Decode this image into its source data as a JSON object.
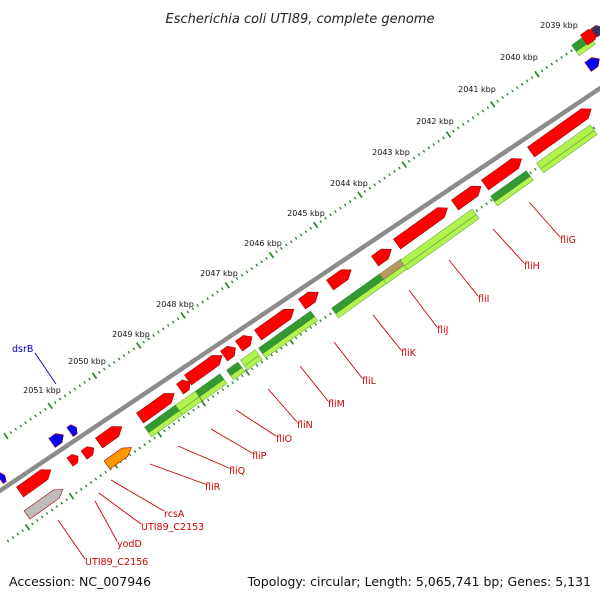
{
  "title": "Escherichia coli UTI89, complete genome",
  "footer": {
    "accession": "Accession: NC_007946",
    "topology": "Topology: circular; Length: 5,065,741 bp; Genes: 5,131"
  },
  "colors": {
    "backbone": "#8c8c8c",
    "cds_forward": "#ff0000",
    "cds_reverse": "#ff0000",
    "rna_gene": "#ff9900",
    "pseudo_gene": "#bdbdbd",
    "regulatory": "#0000ff",
    "cog_dark": "#339933",
    "cog_light": "#b2f24d",
    "ticks": "#2e8b2e",
    "gene_label": "#cc0000",
    "reg_label": "#0000cc"
  },
  "kbp_ticks": [
    "2039 kbp",
    "2040 kbp",
    "2041 kbp",
    "2042 kbp",
    "2043 kbp",
    "2044 kbp",
    "2045 kbp",
    "2046 kbp",
    "2047 kbp",
    "2048 kbp",
    "2049 kbp",
    "2050 kbp",
    "2051 kbp"
  ],
  "gene_labels": [
    {
      "name": "fliG",
      "color": "red"
    },
    {
      "name": "fliH",
      "color": "red"
    },
    {
      "name": "fliI",
      "color": "red"
    },
    {
      "name": "fliJ",
      "color": "red"
    },
    {
      "name": "fliK",
      "color": "red"
    },
    {
      "name": "fliL",
      "color": "red"
    },
    {
      "name": "fliM",
      "color": "red"
    },
    {
      "name": "fliN",
      "color": "red"
    },
    {
      "name": "fliO",
      "color": "red"
    },
    {
      "name": "fliP",
      "color": "red"
    },
    {
      "name": "fliQ",
      "color": "red"
    },
    {
      "name": "fliR",
      "color": "red"
    },
    {
      "name": "rcsA",
      "color": "red"
    },
    {
      "name": "UTI89_C2153",
      "color": "red"
    },
    {
      "name": "yodD",
      "color": "red"
    },
    {
      "name": "UTI89_C2156",
      "color": "red"
    },
    {
      "name": "dsrB",
      "color": "blue"
    }
  ]
}
